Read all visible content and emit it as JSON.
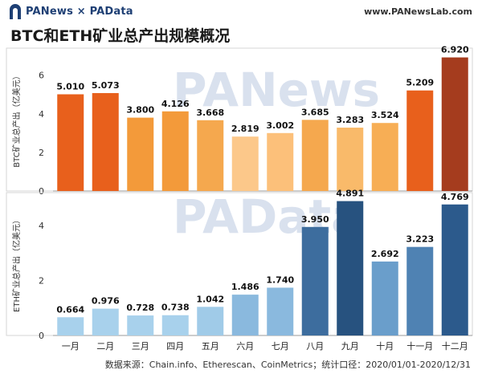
{
  "header": {
    "brand": "PANews × PAData",
    "site": "www.PANewsLab.com",
    "logo_icon": "panews-logo-icon"
  },
  "title": "BTC和ETH矿业总产出规模概况",
  "watermarks": [
    "PANews",
    "PAData"
  ],
  "source": "数据来源：Chain.info、Etherescan、CoinMetrics；统计口径：2020/01/01-2020/12/31",
  "chart_data": [
    {
      "type": "bar",
      "ylabel": "BTC矿业总产出（亿美元）",
      "ylim": [
        0,
        7.4
      ],
      "yticks": [
        0,
        2,
        4,
        6
      ],
      "categories": [
        "一月",
        "二月",
        "三月",
        "四月",
        "五月",
        "六月",
        "七月",
        "八月",
        "九月",
        "十月",
        "十一月",
        "十二月"
      ],
      "values": [
        5.01,
        5.073,
        3.8,
        4.126,
        3.668,
        2.819,
        3.002,
        3.685,
        3.283,
        3.524,
        5.209,
        6.92
      ],
      "value_labels": [
        "5.010",
        "5.073",
        "3.800",
        "4.126",
        "3.668",
        "2.819",
        "3.002",
        "3.685",
        "3.283",
        "3.524",
        "5.209",
        "6.920"
      ],
      "colors": [
        "#e8601c",
        "#e8601c",
        "#f39a3a",
        "#f39a3a",
        "#f5a84e",
        "#fcc88a",
        "#fcc07a",
        "#f5a84e",
        "#f9ba6a",
        "#f7ae55",
        "#e8601c",
        "#a53c1e"
      ]
    },
    {
      "type": "bar",
      "ylabel": "ETH矿业总产出（亿美元）",
      "ylim": [
        0,
        5.2
      ],
      "yticks": [
        0,
        2,
        4
      ],
      "categories": [
        "一月",
        "二月",
        "三月",
        "四月",
        "五月",
        "六月",
        "七月",
        "八月",
        "九月",
        "十月",
        "十一月",
        "十二月"
      ],
      "values": [
        0.664,
        0.976,
        0.728,
        0.738,
        1.042,
        1.486,
        1.74,
        3.95,
        4.891,
        2.692,
        3.223,
        4.769
      ],
      "value_labels": [
        "0.664",
        "0.976",
        "0.728",
        "0.738",
        "1.042",
        "1.486",
        "1.740",
        "3.950",
        "4.891",
        "2.692",
        "3.223",
        "4.769"
      ],
      "colors": [
        "#a8d1ec",
        "#a8d1ec",
        "#a8d1ec",
        "#a8d1ec",
        "#a0cbe8",
        "#8ab9de",
        "#8ab9de",
        "#3d6d9e",
        "#27527f",
        "#6a9ecb",
        "#4f82b3",
        "#2c5a8c"
      ]
    }
  ]
}
